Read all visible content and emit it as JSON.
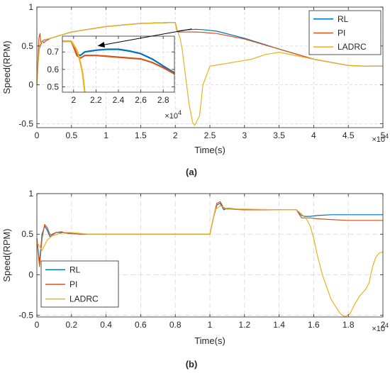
{
  "chart_data": [
    {
      "panel": "(a)",
      "type": "line",
      "xlabel": "Time(s)",
      "ylabel": "Speed(RPM)",
      "x_exponent": "×10",
      "x_exponent_power": "4",
      "xlim": [
        0,
        50000
      ],
      "ylim": [
        -0.55,
        1.0
      ],
      "xticks": [
        0,
        5000,
        10000,
        15000,
        20000,
        25000,
        30000,
        35000,
        40000,
        45000,
        50000
      ],
      "xtick_labels": [
        "0",
        "0.5",
        "1",
        "1.5",
        "2",
        "2.5",
        "3",
        "3.5",
        "4",
        "4.5",
        "5"
      ],
      "yticks": [
        -0.5,
        0,
        0.5,
        1
      ],
      "ytick_labels": [
        "-0.5",
        "0",
        "0.5",
        "1"
      ],
      "grid": true,
      "legend_position": "top-right",
      "series": [
        {
          "name": "RL",
          "color": "#0072BD",
          "x": [
            0,
            300,
            500,
            700,
            900,
            1200,
            2000,
            5000,
            10000,
            15000,
            19000,
            20000,
            20300,
            21000,
            22000,
            23000,
            24000,
            26000,
            30000,
            35000,
            40000,
            45000,
            48000,
            50000
          ],
          "y": [
            0,
            0.45,
            0.5,
            0.55,
            0.57,
            0.58,
            0.6,
            0.68,
            0.75,
            0.79,
            0.8,
            0.8,
            0.69,
            0.7,
            0.71,
            0.715,
            0.71,
            0.69,
            0.6,
            0.46,
            0.33,
            0.25,
            0.24,
            0.24
          ]
        },
        {
          "name": "PI",
          "color": "#D95319",
          "x": [
            0,
            300,
            450,
            600,
            800,
            1000,
            1200,
            2000,
            5000,
            10000,
            15000,
            19000,
            20000,
            20300,
            21000,
            22000,
            23000,
            24000,
            26000,
            30000,
            35000,
            40000,
            45000,
            48000,
            50000
          ],
          "y": [
            0,
            0.6,
            0.66,
            0.52,
            0.57,
            0.54,
            0.56,
            0.6,
            0.68,
            0.75,
            0.79,
            0.8,
            0.8,
            0.68,
            0.68,
            0.68,
            0.68,
            0.675,
            0.66,
            0.59,
            0.46,
            0.33,
            0.25,
            0.24,
            0.24
          ]
        },
        {
          "name": "LADRC",
          "color": "#EDB120",
          "x": [
            0,
            200,
            400,
            700,
            1000,
            2000,
            5000,
            10000,
            15000,
            19000,
            20000,
            20300,
            20700,
            21000,
            21500,
            22000,
            22500,
            22800,
            23500,
            24000,
            25000,
            27000,
            29000,
            31000,
            33000,
            35000,
            40000,
            45000,
            48000,
            50000
          ],
          "y": [
            0,
            0.3,
            0.5,
            0.56,
            0.58,
            0.6,
            0.68,
            0.75,
            0.79,
            0.8,
            0.8,
            0.7,
            0.6,
            0.45,
            0.1,
            -0.25,
            -0.48,
            -0.52,
            -0.4,
            0.0,
            0.24,
            0.27,
            0.3,
            0.33,
            0.39,
            0.42,
            0.33,
            0.25,
            0.24,
            0.24
          ]
        }
      ],
      "inset": {
        "xlim": [
          19000,
          29000
        ],
        "ylim": [
          0.47,
          0.79
        ],
        "xticks": [
          20000,
          22000,
          24000,
          26000,
          28000
        ],
        "xtick_labels": [
          "2",
          "2.2",
          "2.4",
          "2.6",
          "2.8"
        ],
        "yticks": [
          0.5,
          0.6,
          0.7
        ],
        "ytick_labels": [
          "0.5",
          "0.6",
          "0.7"
        ],
        "x_exponent": "×10",
        "x_exponent_power": "4",
        "series": [
          {
            "name": "RL",
            "color": "#0072BD",
            "x": [
              19000,
              19800,
              20000,
              20300,
              20600,
              21000,
              22000,
              23000,
              24000,
              25000,
              26000,
              27000,
              28000,
              29000
            ],
            "y": [
              0.76,
              0.76,
              0.73,
              0.69,
              0.68,
              0.7,
              0.71,
              0.715,
              0.715,
              0.705,
              0.69,
              0.66,
              0.62,
              0.58
            ]
          },
          {
            "name": "PI",
            "color": "#D95319",
            "x": [
              19000,
              19800,
              20000,
              20300,
              20600,
              21000,
              22000,
              23000,
              24000,
              25000,
              26000,
              27000,
              28000,
              29000
            ],
            "y": [
              0.76,
              0.76,
              0.73,
              0.68,
              0.665,
              0.68,
              0.68,
              0.675,
              0.67,
              0.665,
              0.66,
              0.64,
              0.61,
              0.575
            ]
          },
          {
            "name": "LADRC",
            "color": "#EDB120",
            "x": [
              19000,
              19800,
              20000,
              20200,
              20400,
              20600,
              20800,
              21000
            ],
            "y": [
              0.76,
              0.76,
              0.74,
              0.72,
              0.69,
              0.64,
              0.58,
              0.47
            ]
          }
        ]
      }
    },
    {
      "panel": "(b)",
      "type": "line",
      "xlabel": "Time(s)",
      "ylabel": "Speed(RPM)",
      "x_exponent": "×10",
      "x_exponent_power": "4",
      "xlim": [
        0,
        20000
      ],
      "ylim": [
        -0.52,
        1.0
      ],
      "xticks": [
        0,
        2000,
        4000,
        6000,
        8000,
        10000,
        12000,
        14000,
        16000,
        18000,
        20000
      ],
      "xtick_labels": [
        "0",
        "0.2",
        "0.4",
        "0.6",
        "0.8",
        "1",
        "1.2",
        "1.4",
        "1.6",
        "1.8",
        "2"
      ],
      "yticks": [
        -0.5,
        0,
        0.5,
        1
      ],
      "ytick_labels": [
        "-0.5",
        "0",
        "0.5",
        "1"
      ],
      "grid": true,
      "legend_position": "bottom-left",
      "series": [
        {
          "name": "RL",
          "color": "#0072BD",
          "x": [
            0,
            150,
            300,
            450,
            600,
            750,
            900,
            1100,
            1400,
            1800,
            2500,
            4000,
            10000,
            10200,
            10400,
            10600,
            10800,
            11000,
            12000,
            14000,
            15000,
            15150,
            15300,
            15500,
            15800,
            16200,
            17000,
            18000,
            20000
          ],
          "y": [
            0.45,
            0.15,
            0.5,
            0.6,
            0.55,
            0.47,
            0.5,
            0.52,
            0.52,
            0.51,
            0.5,
            0.5,
            0.5,
            0.7,
            0.86,
            0.88,
            0.8,
            0.82,
            0.8,
            0.8,
            0.8,
            0.76,
            0.73,
            0.72,
            0.72,
            0.73,
            0.74,
            0.74,
            0.74
          ]
        },
        {
          "name": "PI",
          "color": "#D95319",
          "x": [
            0,
            150,
            300,
            450,
            600,
            750,
            900,
            1100,
            1400,
            1800,
            2500,
            4000,
            10000,
            10200,
            10400,
            10600,
            10800,
            11000,
            12000,
            14000,
            15000,
            15150,
            15300,
            15500,
            15800,
            16200,
            17000,
            18000,
            20000
          ],
          "y": [
            0.45,
            0.1,
            0.45,
            0.62,
            0.58,
            0.5,
            0.49,
            0.52,
            0.53,
            0.51,
            0.5,
            0.5,
            0.5,
            0.7,
            0.88,
            0.9,
            0.82,
            0.81,
            0.8,
            0.8,
            0.8,
            0.75,
            0.7,
            0.7,
            0.7,
            0.69,
            0.68,
            0.67,
            0.67
          ]
        },
        {
          "name": "LADRC",
          "color": "#EDB120",
          "x": [
            0,
            300,
            600,
            900,
            1200,
            1600,
            2000,
            2500,
            3000,
            4000,
            10000,
            10300,
            10600,
            10900,
            11200,
            12000,
            14000,
            15000,
            15300,
            15600,
            15800,
            16000,
            16200,
            16500,
            17000,
            17500,
            17800,
            18100,
            18400,
            18700,
            19000,
            19200,
            19400,
            19600,
            19800,
            20000
          ],
          "y": [
            0.4,
            0.3,
            0.43,
            0.48,
            0.5,
            0.52,
            0.52,
            0.51,
            0.5,
            0.5,
            0.5,
            0.8,
            0.85,
            0.82,
            0.81,
            0.81,
            0.8,
            0.8,
            0.75,
            0.68,
            0.6,
            0.45,
            0.25,
            0.0,
            -0.3,
            -0.47,
            -0.52,
            -0.48,
            -0.35,
            -0.25,
            -0.18,
            -0.1,
            0.1,
            0.22,
            0.27,
            0.28
          ]
        }
      ]
    }
  ],
  "captions": [
    "(a)",
    "(b)"
  ]
}
